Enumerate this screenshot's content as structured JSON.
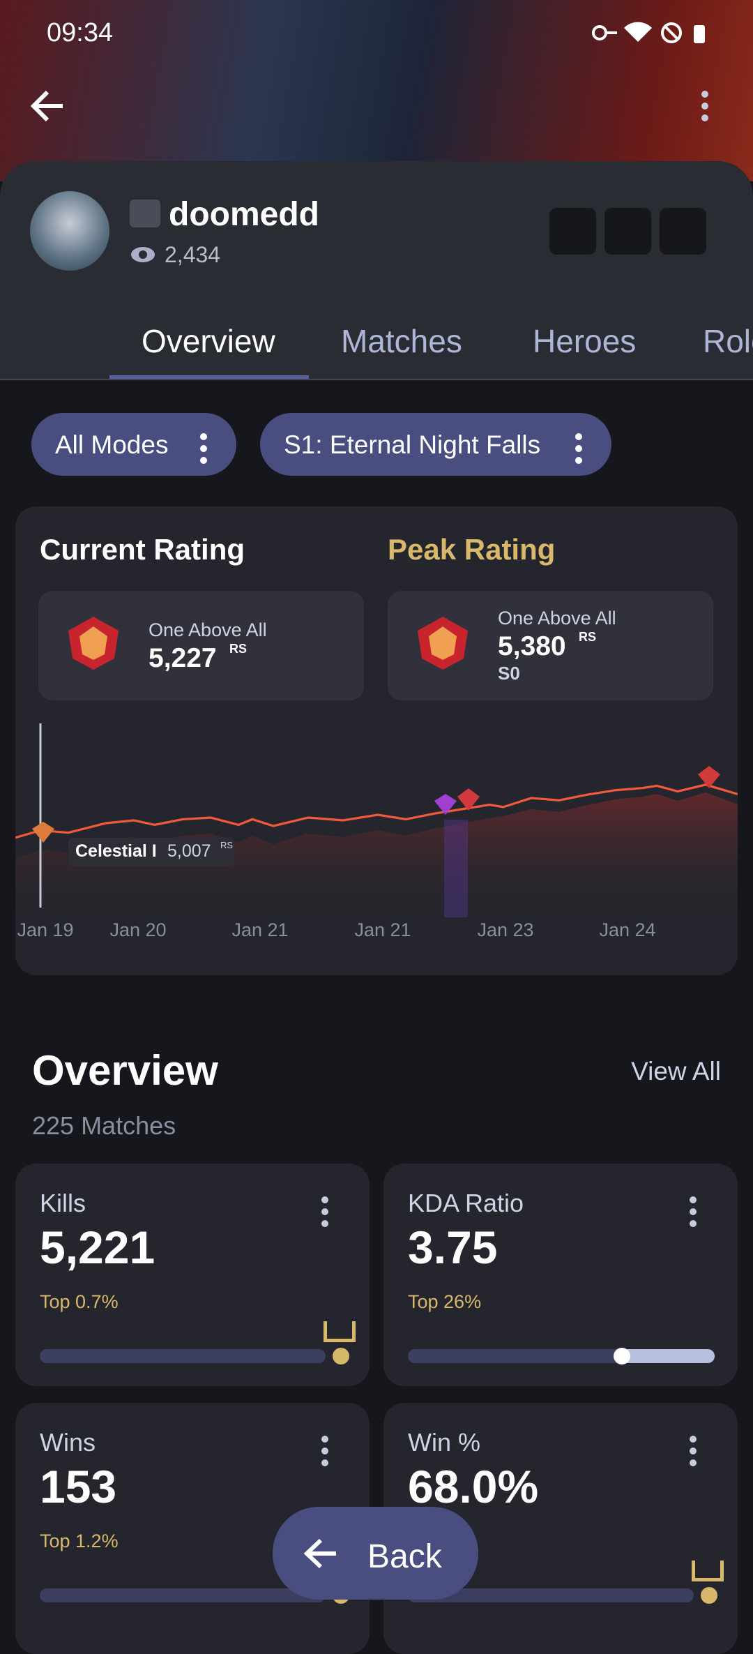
{
  "status_bar": {
    "time": "09:34"
  },
  "profile": {
    "name": "doomedd",
    "views": "2,434"
  },
  "tabs": [
    "Overview",
    "Matches",
    "Heroes",
    "Roles"
  ],
  "filters": [
    "All Modes",
    "S1: Eternal Night Falls"
  ],
  "rating": {
    "current": {
      "title": "Current Rating",
      "tier": "One Above All",
      "value": "5,227",
      "unit": "RS"
    },
    "peak": {
      "title": "Peak Rating",
      "tier": "One Above All",
      "value": "5,380",
      "unit": "RS",
      "season": "S0"
    },
    "tooltip": {
      "tier": "Celestial I",
      "value": "5,007",
      "unit": "RS"
    },
    "x_labels": [
      "Jan 19",
      "Jan 20",
      "Jan 21",
      "Jan 21",
      "Jan 23",
      "Jan 24"
    ]
  },
  "overview": {
    "title": "Overview",
    "view_all": "View All",
    "matches": "225 Matches",
    "stats": [
      {
        "label": "Kills",
        "value": "5,221",
        "top": "Top 0.7%"
      },
      {
        "label": "KDA Ratio",
        "value": "3.75",
        "top": "Top 26%"
      },
      {
        "label": "Wins",
        "value": "153",
        "top": "Top 1.2%"
      },
      {
        "label": "Win %",
        "value": "68.0%"
      }
    ]
  },
  "back_button": "Back"
}
